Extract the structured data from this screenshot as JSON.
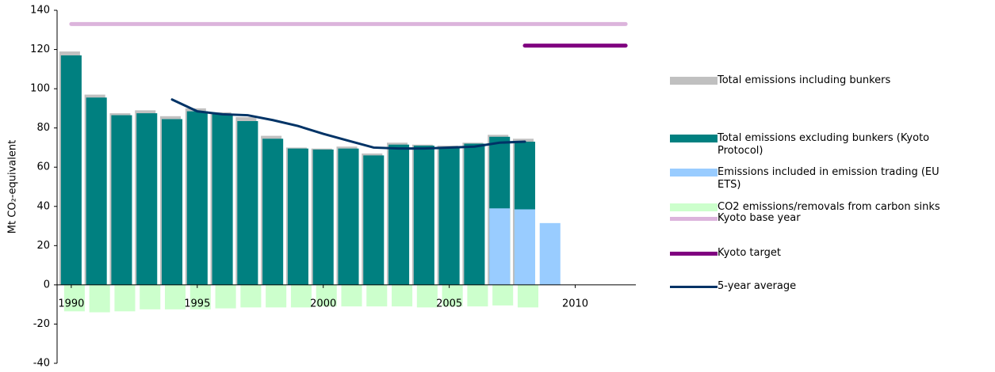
{
  "chart_data": {
    "type": "combo",
    "y_axis_label": "Mt CO₂-equivalent",
    "x": [
      1990,
      1991,
      1992,
      1993,
      1994,
      1995,
      1996,
      1997,
      1998,
      1999,
      2000,
      2001,
      2002,
      2003,
      2004,
      2005,
      2006,
      2007,
      2008,
      2009,
      2010,
      2011,
      2012
    ],
    "xlim": [
      1989.5,
      2012.5
    ],
    "xticks": [
      1990,
      1995,
      2000,
      2005,
      2010
    ],
    "ylim": [
      -40,
      140
    ],
    "yticks": [
      -40,
      -20,
      0,
      20,
      40,
      60,
      80,
      100,
      120,
      140
    ],
    "series": [
      {
        "name": "Total emissions including bunkers",
        "type": "bar",
        "color": "#c0c0c0",
        "values": [
          119,
          97,
          87.5,
          89,
          86,
          90,
          88,
          85.5,
          76,
          70,
          69.5,
          70.5,
          67,
          72.5,
          71.5,
          71,
          72.5,
          76.5,
          74.5,
          null,
          null,
          null,
          null
        ]
      },
      {
        "name": "Total emissions excluding bunkers (Kyoto Protocol)",
        "type": "bar",
        "color": "#008080",
        "values": [
          117,
          95.5,
          86.5,
          87.5,
          84.5,
          88.5,
          87,
          83.5,
          74.5,
          69.5,
          69,
          69.5,
          66,
          71.5,
          71,
          70,
          72,
          75.5,
          73,
          null,
          null,
          null,
          null
        ]
      },
      {
        "name": "Emissions included in emission trading (EU ETS)",
        "type": "bar",
        "color": "#99ccff",
        "values": [
          null,
          null,
          null,
          null,
          null,
          null,
          null,
          null,
          null,
          null,
          null,
          null,
          null,
          null,
          null,
          null,
          null,
          39,
          38.5,
          31.5,
          null,
          null,
          null
        ]
      },
      {
        "name": "CO2 emissions/removals from carbon sinks",
        "type": "bar",
        "color": "#ccffcc",
        "values": [
          -13.5,
          -14,
          -13.5,
          -12.5,
          -12.5,
          -12.5,
          -12,
          -11.5,
          -11.5,
          -11.5,
          -11,
          -11,
          -11,
          -11,
          -11.5,
          -11,
          -11,
          -10.5,
          -11.5,
          null,
          null,
          null,
          null
        ]
      },
      {
        "name": "Kyoto base year",
        "type": "line",
        "color": "#dcb4dc",
        "values": [
          133,
          133,
          133,
          133,
          133,
          133,
          133,
          133,
          133,
          133,
          133,
          133,
          133,
          133,
          133,
          133,
          133,
          133,
          133,
          133,
          133,
          133,
          133
        ]
      },
      {
        "name": "Kyoto target",
        "type": "line",
        "color": "#800080",
        "values": [
          null,
          null,
          null,
          null,
          null,
          null,
          null,
          null,
          null,
          null,
          null,
          null,
          null,
          null,
          null,
          null,
          null,
          null,
          122,
          122,
          122,
          122,
          122
        ]
      },
      {
        "name": "5-year average",
        "type": "line",
        "color": "#003366",
        "values": [
          null,
          null,
          null,
          null,
          94.5,
          88.5,
          87,
          86.5,
          84,
          81,
          77,
          73.5,
          70,
          69.5,
          69.5,
          70,
          70.5,
          72.5,
          73,
          null,
          null,
          null,
          null
        ]
      }
    ]
  }
}
